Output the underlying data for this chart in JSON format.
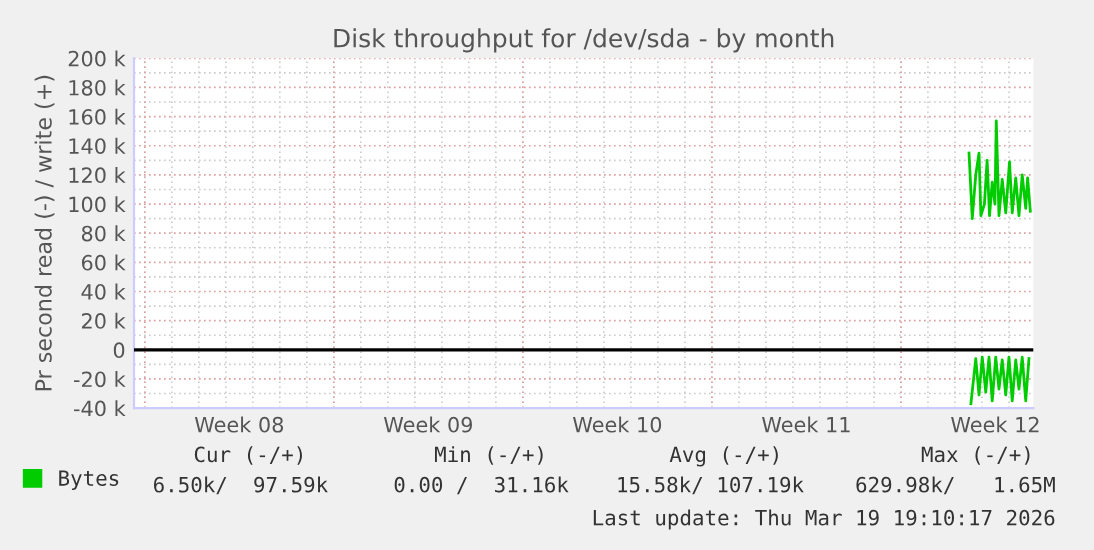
{
  "chart_data": {
    "type": "line",
    "title": "Disk throughput for /dev/sda - by month",
    "ylabel": "Pr second read (-) / write (+)",
    "xlim": [
      "2026-02-14T14:24",
      "2026-03-19T21:36"
    ],
    "xticks": [
      {
        "value": "2026-02-18T12:00",
        "label": "Week 08"
      },
      {
        "value": "2026-02-25T12:00",
        "label": "Week 09"
      },
      {
        "value": "2026-03-04T12:00",
        "label": "Week 10"
      },
      {
        "value": "2026-03-11T12:00",
        "label": "Week 11"
      },
      {
        "value": "2026-03-18T12:00",
        "label": "Week 12"
      }
    ],
    "ylim": [
      -40000,
      200000
    ],
    "yticks": [
      {
        "value": -40000,
        "label": "-40 k"
      },
      {
        "value": -20000,
        "label": "-20 k"
      },
      {
        "value": 0,
        "label": "0"
      },
      {
        "value": 20000,
        "label": "20 k"
      },
      {
        "value": 40000,
        "label": "40 k"
      },
      {
        "value": 60000,
        "label": "60 k"
      },
      {
        "value": 80000,
        "label": "80 k"
      },
      {
        "value": 100000,
        "label": "100 k"
      },
      {
        "value": 120000,
        "label": "120 k"
      },
      {
        "value": 140000,
        "label": "140 k"
      },
      {
        "value": 160000,
        "label": "160 k"
      },
      {
        "value": 180000,
        "label": "180 k"
      },
      {
        "value": 200000,
        "label": "200 k"
      }
    ],
    "grid": true,
    "legend": "bottom left",
    "line_style": "solid",
    "ref_lines": [
      {
        "axis": "y",
        "value": 0,
        "color": "#000000"
      }
    ],
    "series": [
      {
        "name": "Bytes",
        "color": "#00cc00",
        "x": [
          "2026-03-17T12:29",
          "2026-03-17T15:22",
          "2026-03-17T18:29",
          "2026-03-17T21:22",
          "2026-03-17T23:02",
          "2026-03-18T02:10",
          "2026-03-18T04:34",
          "2026-03-18T06:43",
          "2026-03-18T09:07",
          "2026-03-18T11:31",
          "2026-03-18T12:43",
          "2026-03-18T15:07",
          "2026-03-18T18:00",
          "2026-03-18T21:07",
          "2026-03-19T00:29",
          "2026-03-19T02:53",
          "2026-03-19T06:00",
          "2026-03-19T08:53",
          "2026-03-19T11:46",
          "2026-03-19T14:53",
          "2026-03-19T16:34",
          "2026-03-19T18:58"
        ],
        "values": [
          135000,
          90000,
          120000,
          135000,
          92000,
          100000,
          130000,
          92000,
          115000,
          100000,
          157000,
          92000,
          117000,
          94000,
          129000,
          94000,
          118000,
          92000,
          120000,
          97000,
          118000,
          95000
        ]
      },
      {
        "color": "#00cc00",
        "x": [
          "2026-03-17T14:10",
          "2026-03-17T18:29",
          "2026-03-17T21:22",
          "2026-03-18T00:14",
          "2026-03-18T03:22",
          "2026-03-18T06:14",
          "2026-03-18T09:07",
          "2026-03-18T12:14",
          "2026-03-18T15:07",
          "2026-03-18T18:00",
          "2026-03-18T21:07",
          "2026-03-19T00:00",
          "2026-03-19T02:53",
          "2026-03-19T06:00",
          "2026-03-19T08:53",
          "2026-03-19T11:46",
          "2026-03-19T14:53",
          "2026-03-19T17:46"
        ],
        "values": [
          -37000,
          -6000,
          -31000,
          -5000,
          -29000,
          -5000,
          -35000,
          -5000,
          -27000,
          -7000,
          -31000,
          -5000,
          -35000,
          -7000,
          -27000,
          -5000,
          -35000,
          -6000
        ]
      }
    ],
    "annotations": [
      "Cur (-/+)",
      "Min (-/+)",
      "Avg (-/+)",
      "Max (-/+)",
      "6.50k/  97.59k",
      "0.00 /  31.16k",
      "15.58k/ 107.19k",
      "629.98k/   1.65M",
      "Last update: Thu Mar 19 19:10:17 2026"
    ]
  }
}
